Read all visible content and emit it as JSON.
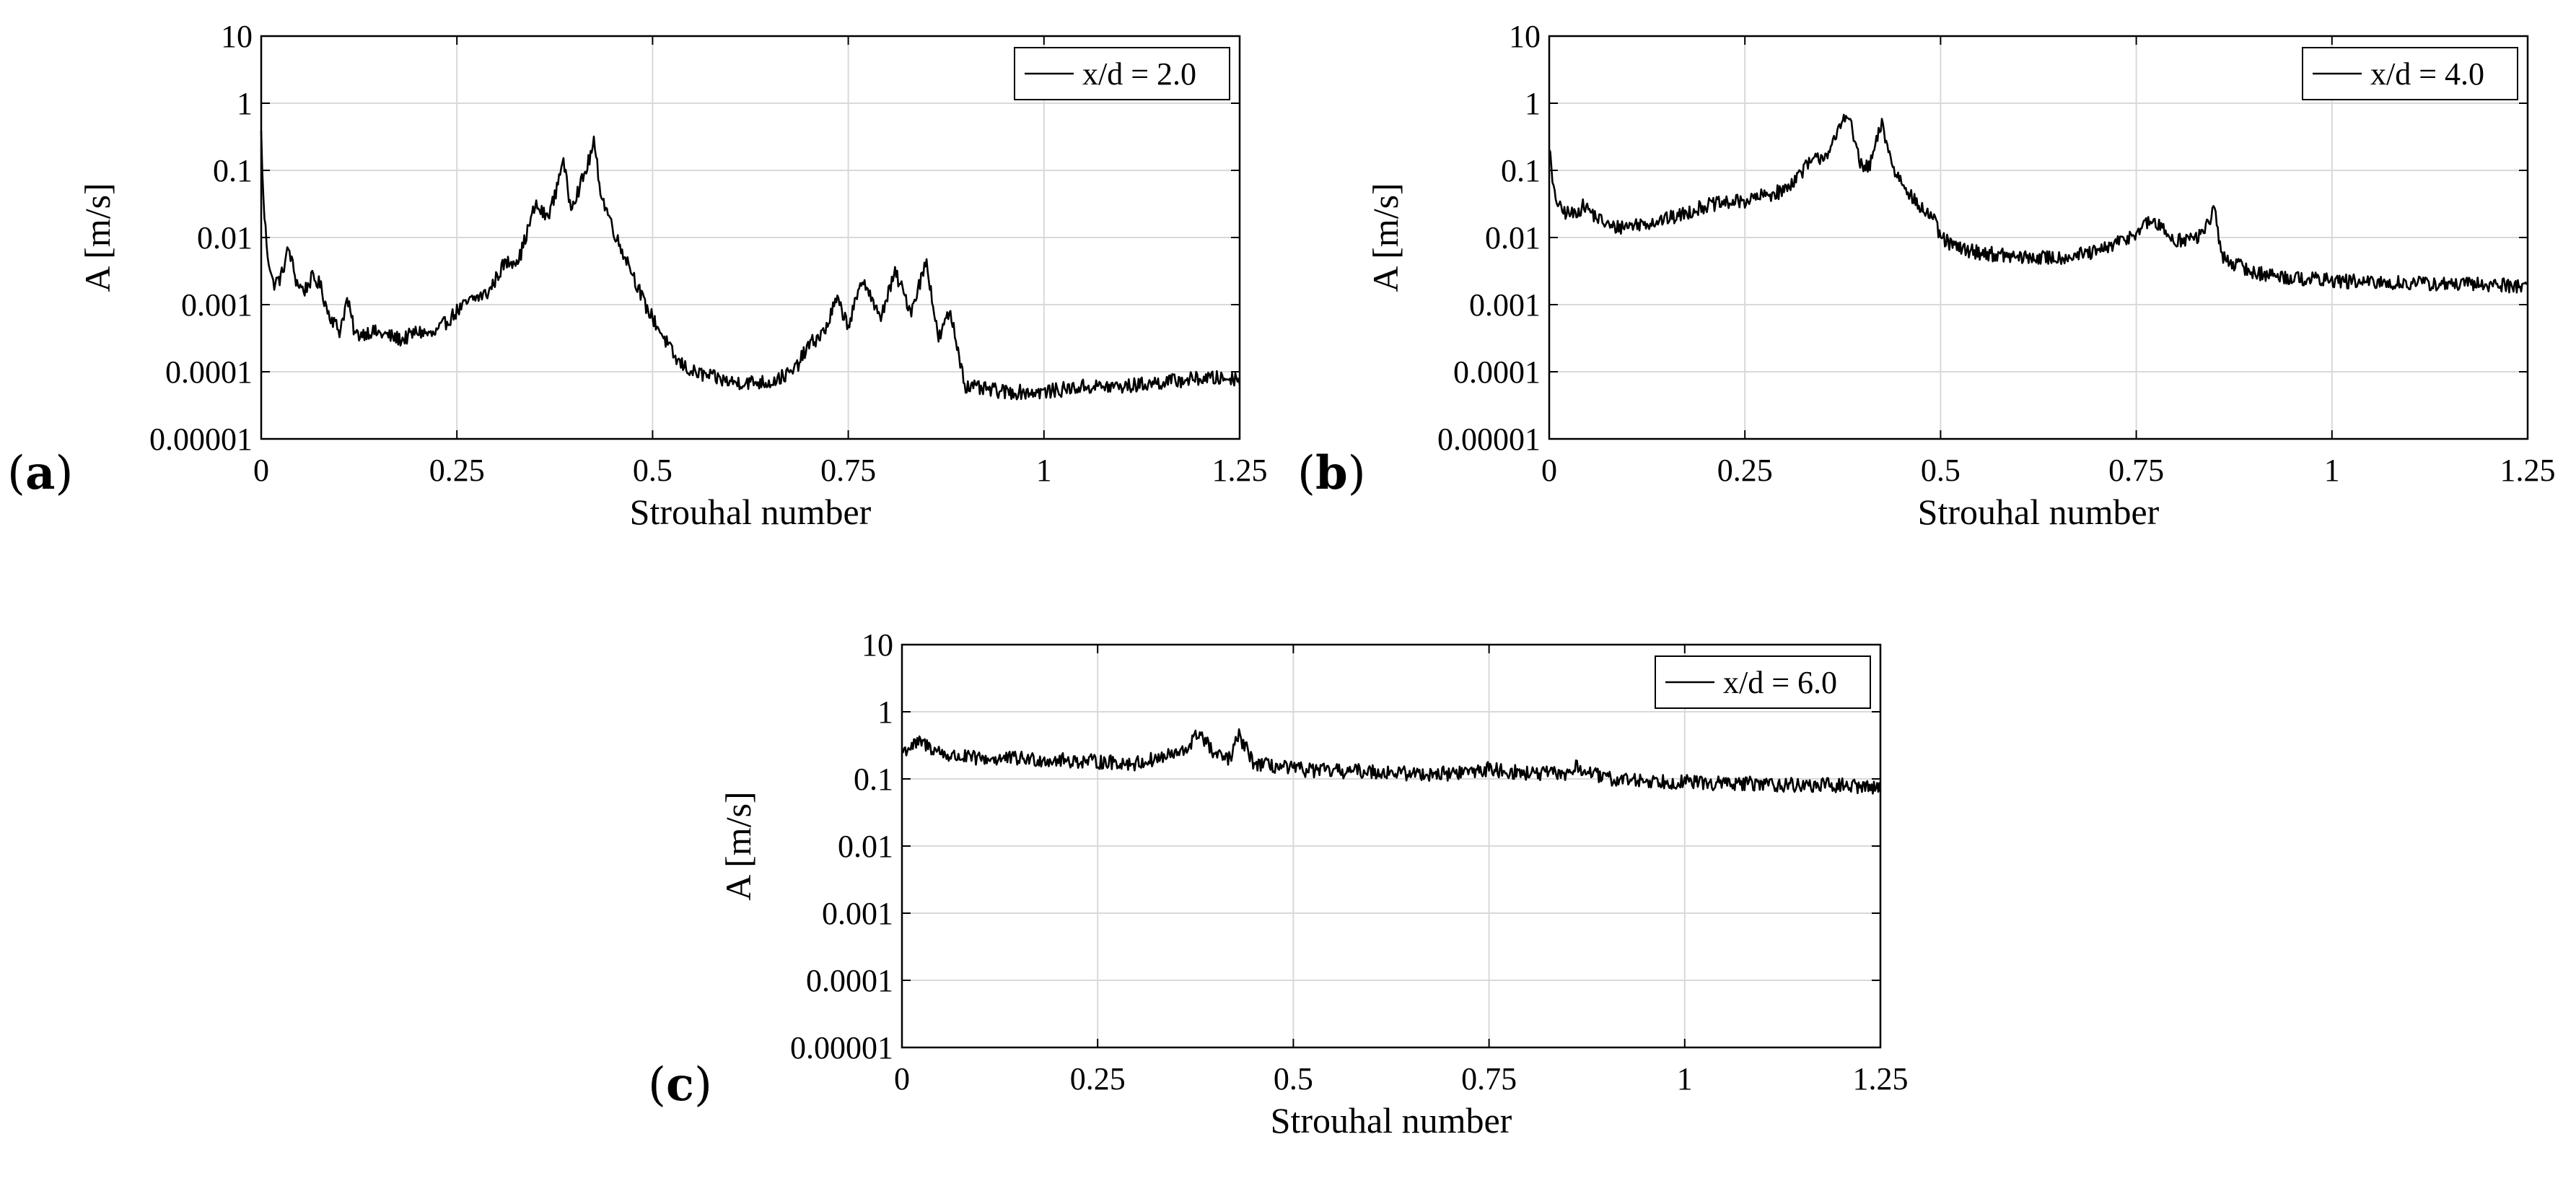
{
  "figure_label_left": "(",
  "figure_label_right": ")",
  "chart_data": [
    {
      "id": "a",
      "panel_label": "a",
      "type": "line",
      "title": "",
      "xlabel": "Strouhal number",
      "ylabel": "A [m/s]",
      "yscale": "log",
      "xlim": [
        0,
        1.25
      ],
      "ylim": [
        1e-05,
        10
      ],
      "grid": true,
      "legend_placement": "top-right",
      "x_ticks": [
        0,
        0.25,
        0.5,
        0.75,
        1,
        1.25
      ],
      "x_tick_labels": [
        "0",
        "0.25",
        "0.5",
        "0.75",
        "1",
        "1.25"
      ],
      "y_ticks": [
        1e-05,
        0.0001,
        0.001,
        0.01,
        0.1,
        1,
        10
      ],
      "y_tick_labels": [
        "0.00001",
        "0.0001",
        "0.001",
        "0.01",
        "0.1",
        "1",
        "10"
      ],
      "series": [
        {
          "name": "x/d = 2.0",
          "color": "#000000",
          "x": [
            0,
            0.003,
            0.008,
            0.015,
            0.025,
            0.035,
            0.045,
            0.055,
            0.065,
            0.075,
            0.085,
            0.1,
            0.11,
            0.12,
            0.14,
            0.16,
            0.18,
            0.2,
            0.22,
            0.25,
            0.27,
            0.29,
            0.31,
            0.33,
            0.35,
            0.365,
            0.375,
            0.385,
            0.395,
            0.405,
            0.415,
            0.425,
            0.435,
            0.445,
            0.455,
            0.47,
            0.49,
            0.51,
            0.53,
            0.55,
            0.6,
            0.65,
            0.68,
            0.7,
            0.72,
            0.735,
            0.75,
            0.77,
            0.79,
            0.81,
            0.83,
            0.85,
            0.865,
            0.88,
            0.9,
            0.95,
            1,
            1.05,
            1.1,
            1.15,
            1.2,
            1.25
          ],
          "values": [
            0.35,
            0.03,
            0.006,
            0.002,
            0.0025,
            0.007,
            0.0022,
            0.0016,
            0.0025,
            0.002,
            0.0008,
            0.0004,
            0.0012,
            0.00035,
            0.0004,
            0.00035,
            0.0003,
            0.0004,
            0.00035,
            0.0008,
            0.0012,
            0.0015,
            0.004,
            0.005,
            0.03,
            0.02,
            0.04,
            0.15,
            0.03,
            0.05,
            0.1,
            0.25,
            0.04,
            0.02,
            0.009,
            0.004,
            0.001,
            0.0004,
            0.00015,
            0.0001,
            7e-05,
            7e-05,
            0.0001,
            0.00025,
            0.0004,
            0.0012,
            0.0005,
            0.0025,
            0.0006,
            0.003,
            0.0008,
            0.0045,
            0.0003,
            0.0008,
            6e-05,
            5e-05,
            5e-05,
            6e-05,
            6e-05,
            7e-05,
            8e-05,
            8e-05
          ]
        }
      ]
    },
    {
      "id": "b",
      "panel_label": "b",
      "type": "line",
      "title": "",
      "xlabel": "Strouhal number",
      "ylabel": "A [m/s]",
      "yscale": "log",
      "xlim": [
        0,
        1.25
      ],
      "ylim": [
        1e-05,
        10
      ],
      "grid": true,
      "legend_placement": "top-right",
      "x_ticks": [
        0,
        0.25,
        0.5,
        0.75,
        1,
        1.25
      ],
      "x_tick_labels": [
        "0",
        "0.25",
        "0.5",
        "0.75",
        "1",
        "1.25"
      ],
      "y_ticks": [
        1e-05,
        0.0001,
        0.001,
        0.01,
        0.1,
        1,
        10
      ],
      "y_tick_labels": [
        "0.00001",
        "0.0001",
        "0.001",
        "0.01",
        "0.1",
        "1",
        "10"
      ],
      "series": [
        {
          "name": "x/d = 4.0",
          "color": "#000000",
          "x": [
            0,
            0.005,
            0.015,
            0.03,
            0.045,
            0.06,
            0.08,
            0.1,
            0.13,
            0.16,
            0.2,
            0.25,
            0.3,
            0.33,
            0.36,
            0.38,
            0.4,
            0.41,
            0.425,
            0.44,
            0.455,
            0.47,
            0.49,
            0.5,
            0.52,
            0.55,
            0.6,
            0.65,
            0.7,
            0.74,
            0.77,
            0.8,
            0.83,
            0.85,
            0.86,
            0.9,
            0.95,
            1,
            1.05,
            1.1,
            1.15,
            1.2,
            1.25
          ],
          "values": [
            0.25,
            0.05,
            0.025,
            0.022,
            0.03,
            0.02,
            0.014,
            0.015,
            0.017,
            0.02,
            0.03,
            0.035,
            0.05,
            0.12,
            0.2,
            0.8,
            0.1,
            0.12,
            0.5,
            0.1,
            0.06,
            0.03,
            0.02,
            0.01,
            0.007,
            0.006,
            0.005,
            0.005,
            0.006,
            0.01,
            0.018,
            0.009,
            0.01,
            0.025,
            0.005,
            0.003,
            0.0025,
            0.0023,
            0.0021,
            0.0021,
            0.002,
            0.002,
            0.0019
          ]
        }
      ]
    },
    {
      "id": "c",
      "panel_label": "c",
      "type": "line",
      "title": "",
      "xlabel": "Strouhal number",
      "ylabel": "A [m/s]",
      "yscale": "log",
      "xlim": [
        0,
        1.25
      ],
      "ylim": [
        1e-05,
        10
      ],
      "grid": true,
      "legend_placement": "top-right",
      "x_ticks": [
        0,
        0.25,
        0.5,
        0.75,
        1,
        1.25
      ],
      "x_tick_labels": [
        "0",
        "0.25",
        "0.5",
        "0.75",
        "1",
        "1.25"
      ],
      "y_ticks": [
        1e-05,
        0.0001,
        0.001,
        0.01,
        0.1,
        1,
        10
      ],
      "y_tick_labels": [
        "0.00001",
        "0.0001",
        "0.001",
        "0.01",
        "0.1",
        "1",
        "10"
      ],
      "series": [
        {
          "name": "x/d = 6.0",
          "color": "#000000",
          "x": [
            0,
            0.01,
            0.025,
            0.04,
            0.06,
            0.1,
            0.15,
            0.2,
            0.25,
            0.3,
            0.34,
            0.36,
            0.38,
            0.4,
            0.42,
            0.43,
            0.45,
            0.5,
            0.55,
            0.6,
            0.65,
            0.7,
            0.75,
            0.8,
            0.85,
            0.86,
            0.9,
            0.95,
            1,
            1.05,
            1.1,
            1.15,
            1.2,
            1.25
          ],
          "values": [
            0.25,
            0.3,
            0.35,
            0.28,
            0.22,
            0.2,
            0.2,
            0.19,
            0.18,
            0.17,
            0.22,
            0.25,
            0.5,
            0.22,
            0.2,
            0.45,
            0.17,
            0.14,
            0.13,
            0.13,
            0.12,
            0.12,
            0.14,
            0.12,
            0.12,
            0.15,
            0.1,
            0.095,
            0.09,
            0.085,
            0.085,
            0.08,
            0.08,
            0.075
          ]
        }
      ]
    }
  ]
}
